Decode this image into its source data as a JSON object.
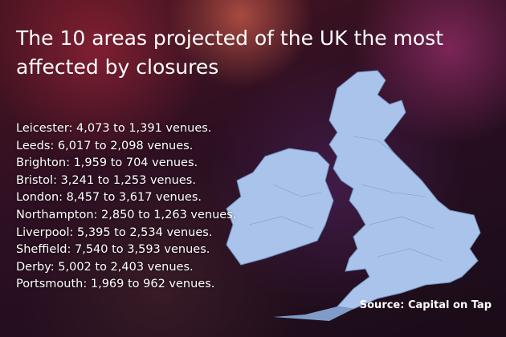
{
  "title": "The 10 areas projected of the UK the most affected by closures",
  "items": [
    "Leicester: 4,073 to 1,391 venues.",
    "Leeds: 6,017 to 2,098 venues.",
    "Brighton: 1,959 to 704 venues.",
    "Bristol: 3,241 to 1,253 venues.",
    "London: 8,457 to 3,617 venues.",
    "Northampton: 2,850 to 1,263 venues.",
    "Liverpool: 5,395 to 2,534 venues.",
    "Sheffield: 7,540 to 3,593 venues.",
    "Derby: 5,002 to 2,403 venues.",
    "Portsmouth: 1,969 to 962 venues."
  ],
  "source": "Source: Capital on Tap"
}
